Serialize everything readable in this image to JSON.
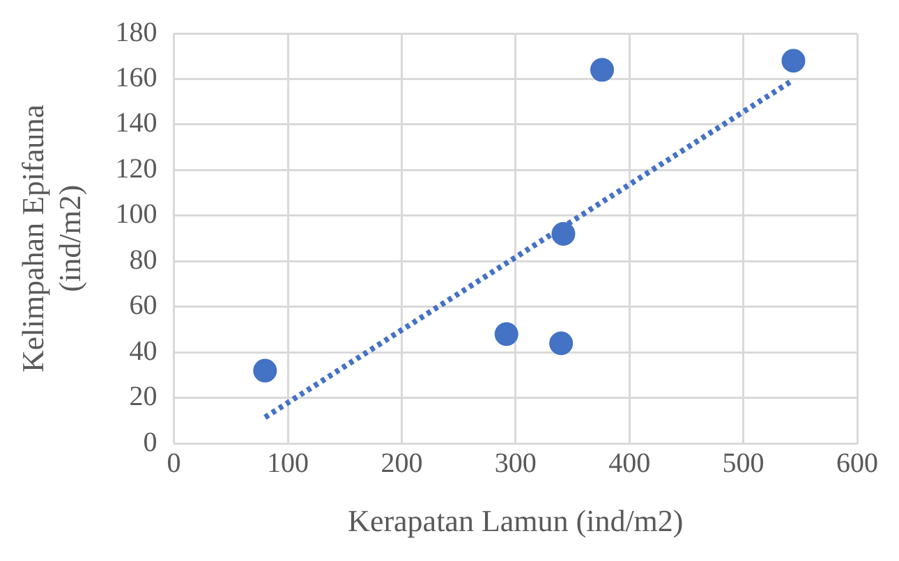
{
  "chart_data": {
    "type": "scatter",
    "xlabel": "Kerapatan Lamun (ind/m2)",
    "ylabel": "Kelimpahan Epifauna\n(ind/m2)",
    "xlim": [
      0,
      600
    ],
    "xticks": [
      0,
      100,
      200,
      300,
      400,
      500,
      600
    ],
    "ylim": [
      0,
      180
    ],
    "yticks": [
      0,
      20,
      40,
      60,
      80,
      100,
      120,
      140,
      160,
      180
    ],
    "grid": true,
    "legend": false,
    "marker": "circle",
    "series": [
      {
        "color": "#4472c4",
        "x": [
          80,
          292,
          340,
          342,
          376,
          544
        ],
        "values": [
          32,
          48,
          44,
          92,
          164,
          168
        ]
      },
      {
        "type": "line",
        "color": "#4472c4",
        "line_style": "dotted",
        "marker": "none",
        "x": [
          80,
          542
        ],
        "values": [
          11.5,
          159
        ]
      }
    ]
  }
}
